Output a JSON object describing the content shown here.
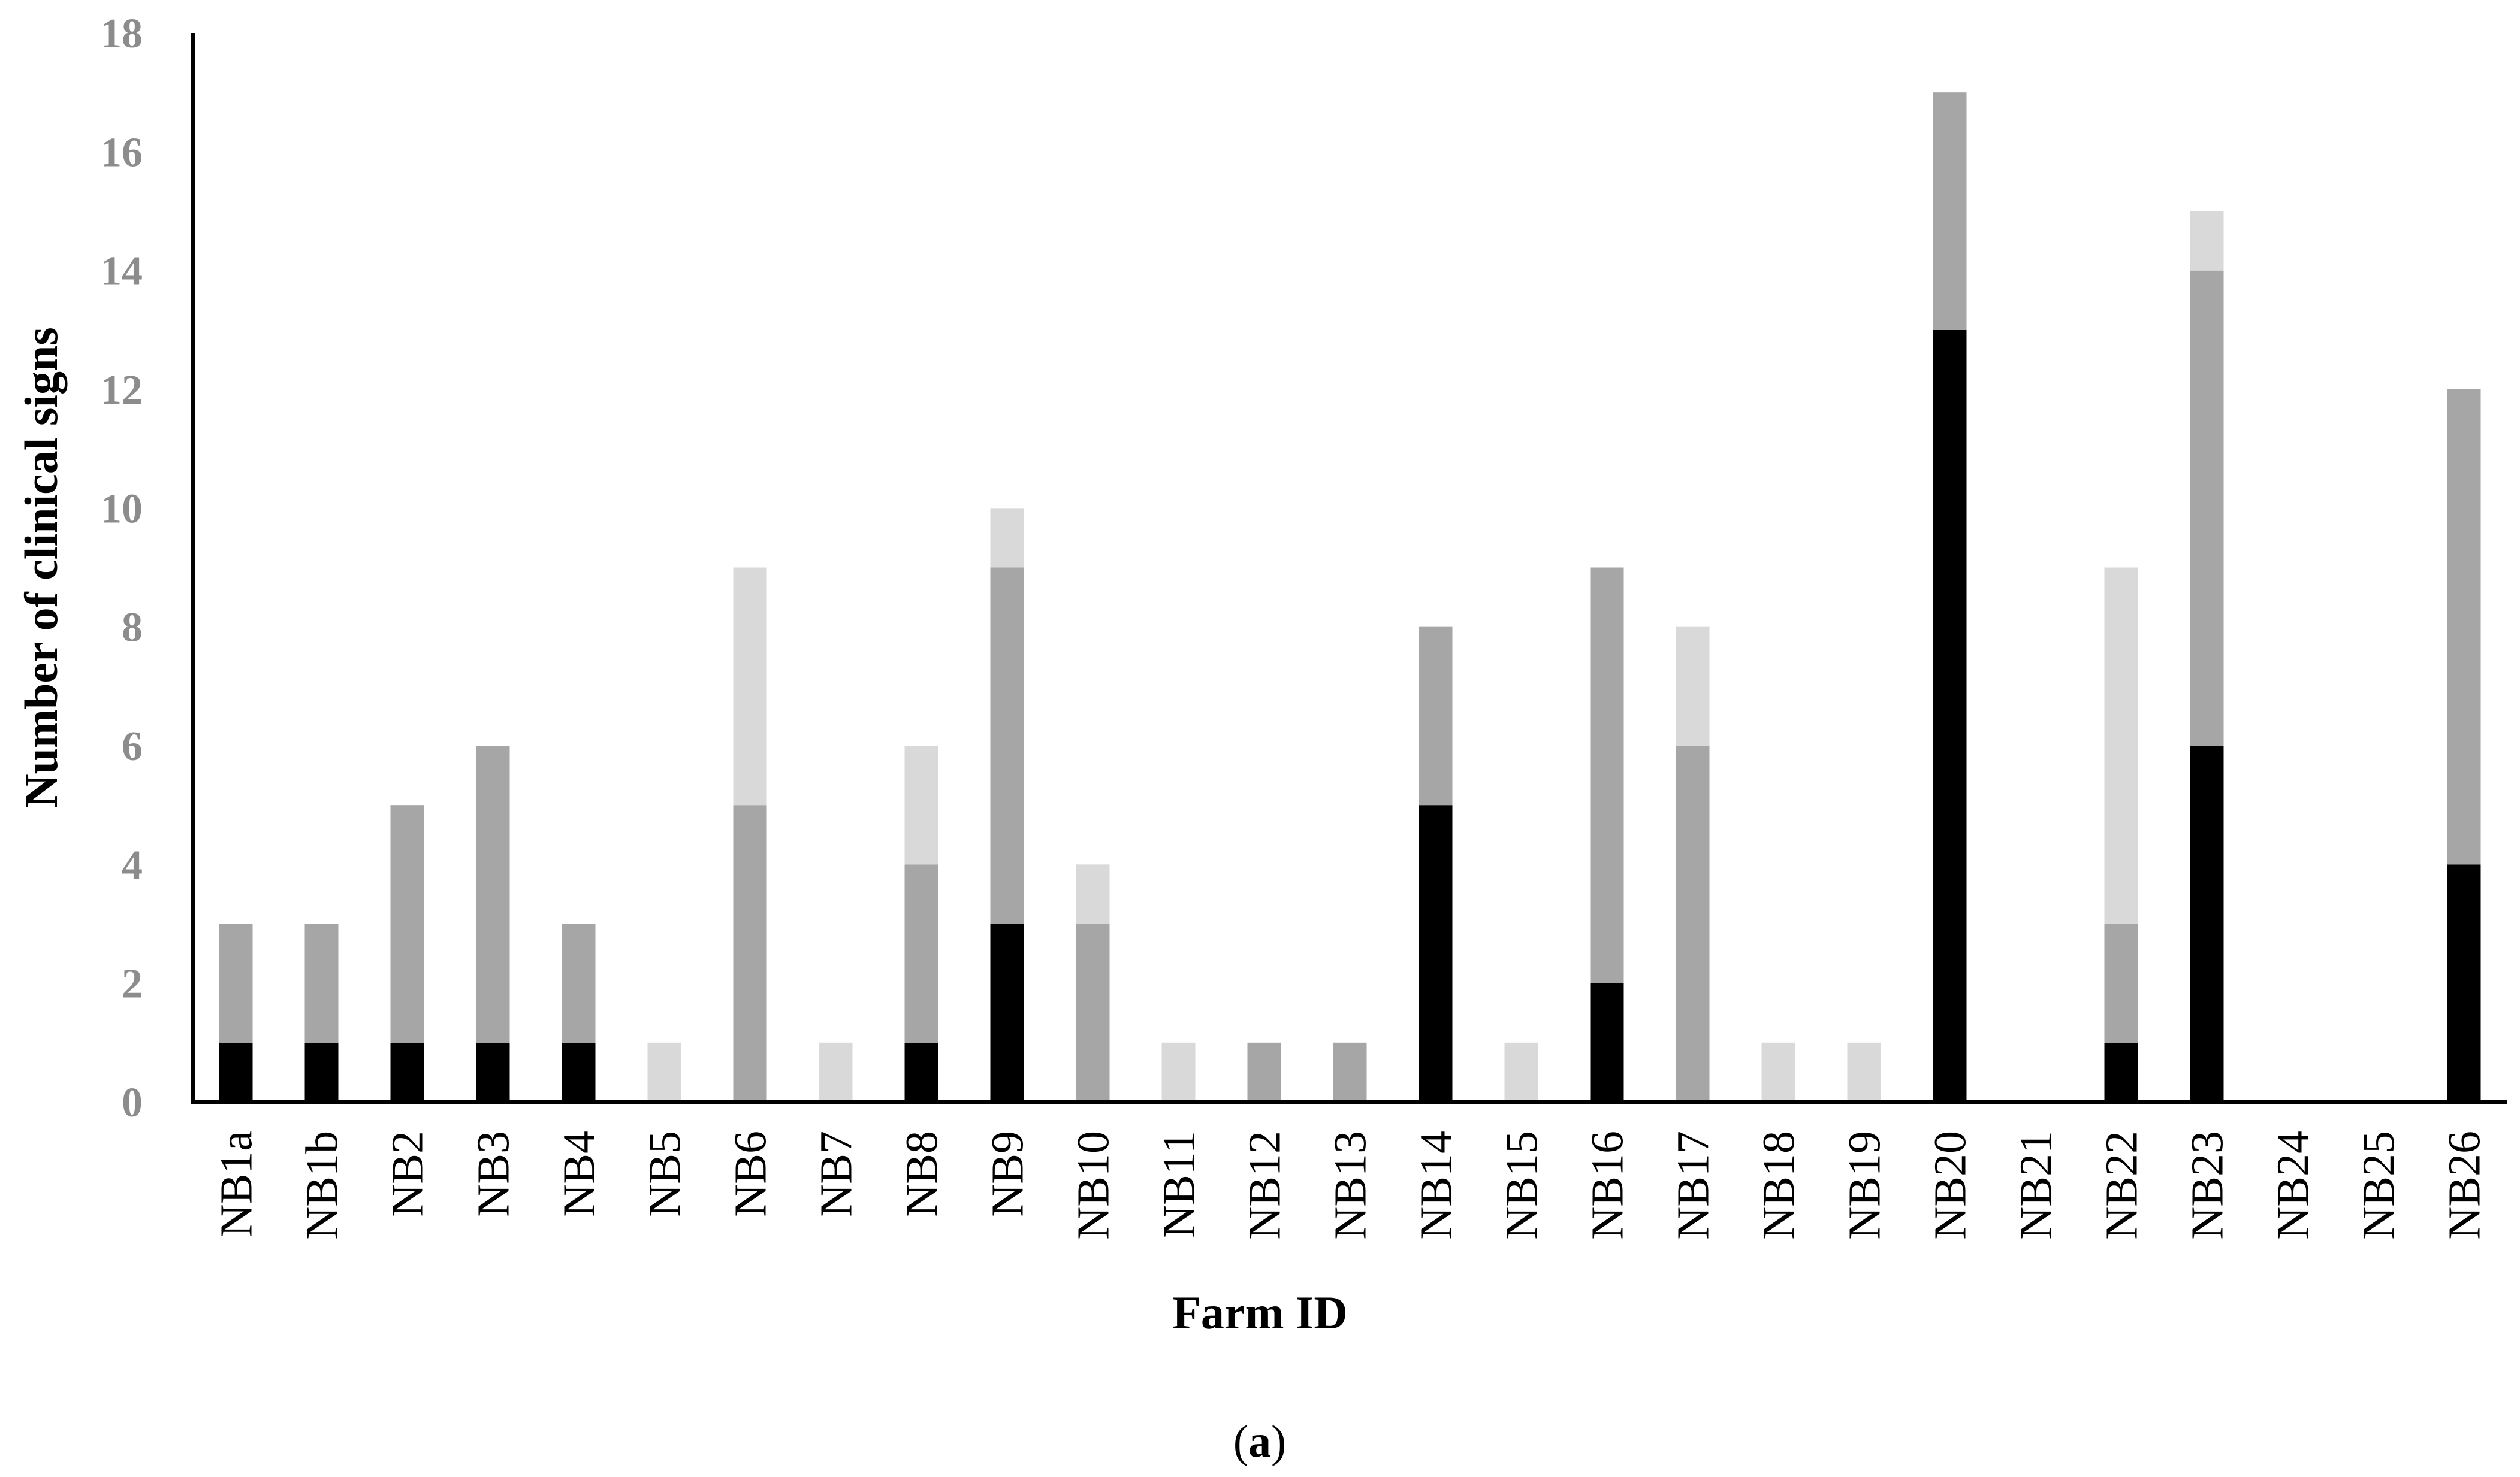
{
  "chart_data": {
    "type": "bar",
    "stacked": true,
    "title": "",
    "xlabel": "Farm ID",
    "ylabel": "Number of clinical signs",
    "ylim": [
      0,
      18
    ],
    "yticks": [
      0,
      2,
      4,
      6,
      8,
      10,
      12,
      14,
      16,
      18
    ],
    "grid": false,
    "legend": "none",
    "categories": [
      "NB1a",
      "NB1b",
      "NB2",
      "NB3",
      "NB4",
      "NB5",
      "NB6",
      "NB7",
      "NB8",
      "NB9",
      "NB10",
      "NB11",
      "NB12",
      "NB13",
      "NB14",
      "NB15",
      "NB16",
      "NB17",
      "NB18",
      "NB19",
      "NB20",
      "NB21",
      "NB22",
      "NB23",
      "NB24",
      "NB25",
      "NB26"
    ],
    "series": [
      {
        "color": "#000000",
        "values": [
          1,
          1,
          1,
          1,
          1,
          0,
          0,
          0,
          1,
          3,
          0,
          0,
          0,
          0,
          5,
          0,
          2,
          0,
          0,
          0,
          13,
          0,
          1,
          6,
          0,
          0,
          4
        ]
      },
      {
        "color": "#a6a6a6",
        "values": [
          2,
          2,
          4,
          5,
          2,
          0,
          5,
          0,
          3,
          6,
          3,
          0,
          1,
          1,
          3,
          0,
          7,
          6,
          0,
          0,
          4,
          0,
          2,
          8,
          0,
          0,
          8
        ]
      },
      {
        "color": "#d9d9d9",
        "values": [
          0,
          0,
          0,
          0,
          0,
          1,
          4,
          1,
          2,
          1,
          1,
          1,
          0,
          0,
          0,
          1,
          0,
          2,
          1,
          1,
          0,
          0,
          6,
          1,
          0,
          0,
          0
        ]
      }
    ]
  },
  "caption": {
    "open": "(",
    "letter": "a",
    "close": ")"
  },
  "colors": {
    "axis": "#000000",
    "ytick_text": "#8c8c8c"
  }
}
